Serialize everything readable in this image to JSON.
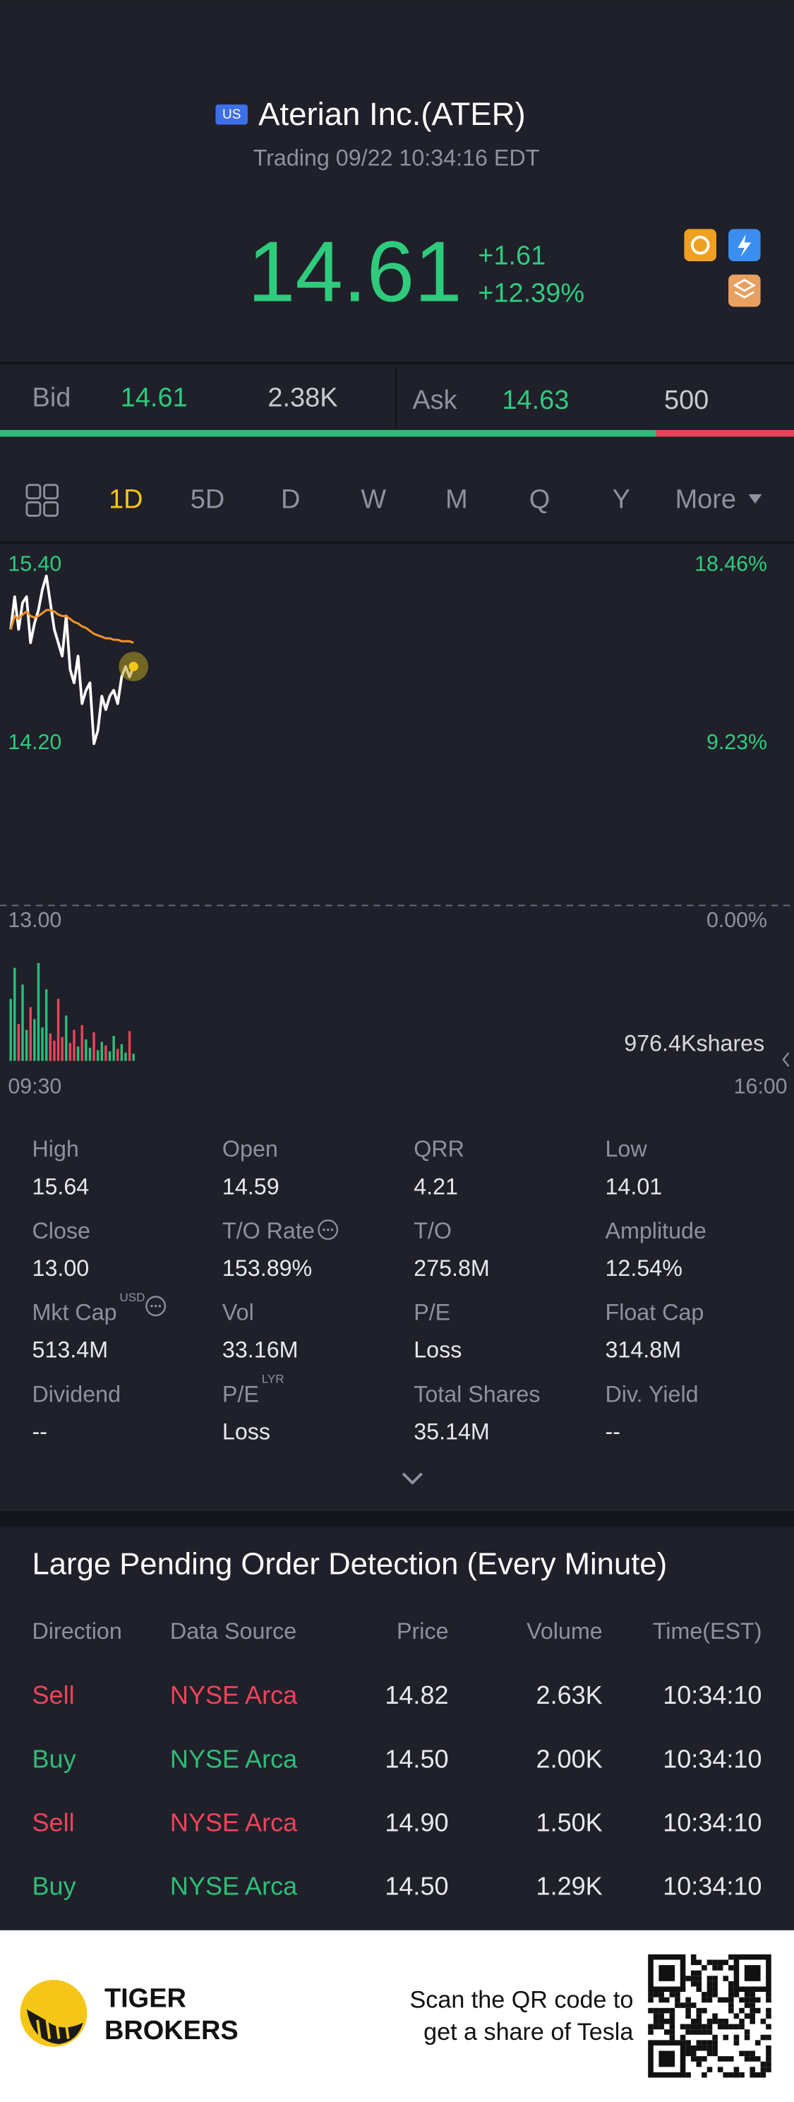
{
  "header": {
    "market": "US",
    "title": "Aterian Inc.(ATER)",
    "status": "Trading 09/22 10:34:16 EDT"
  },
  "quote": {
    "price": "14.61",
    "change": "+1.61",
    "change_percent": "+12.39%"
  },
  "bid_ask": {
    "bid_label": "Bid",
    "bid_price": "14.61",
    "bid_size": {
      "value": 2380,
      "label": "2.38K"
    },
    "ask_label": "Ask",
    "ask_price": "14.63",
    "ask_size": 500
  },
  "tabs": {
    "items": [
      "1D",
      "5D",
      "D",
      "W",
      "M",
      "Q",
      "Y",
      "More"
    ],
    "active": 0
  },
  "chart_data": [
    {
      "type": "line",
      "x": [
        "09:30",
        "09:32",
        "09:34",
        "09:36",
        "09:38",
        "09:40",
        "09:42",
        "09:44",
        "09:46",
        "09:48",
        "09:50",
        "09:52",
        "09:54",
        "09:56",
        "09:58",
        "10:00",
        "10:02",
        "10:04",
        "10:06",
        "10:08",
        "10:10",
        "10:12",
        "10:14",
        "10:16",
        "10:18",
        "10:20",
        "10:22",
        "10:24",
        "10:26",
        "10:28",
        "10:30",
        "10:32"
      ],
      "series": [
        {
          "color": "#ffffff",
          "values": [
            14.86,
            15.08,
            14.86,
            15.04,
            15.08,
            14.77,
            14.9,
            14.99,
            15.13,
            15.22,
            15.04,
            14.86,
            14.77,
            14.68,
            14.95,
            14.59,
            14.5,
            14.68,
            14.36,
            14.45,
            14.5,
            14.09,
            14.18,
            14.41,
            14.32,
            14.41,
            14.45,
            14.36,
            14.54,
            14.61,
            14.54,
            14.61
          ]
        },
        {
          "color": "#f0932b",
          "values": [
            14.86,
            14.95,
            14.93,
            14.96,
            14.98,
            14.95,
            14.94,
            14.95,
            14.97,
            14.99,
            14.99,
            14.98,
            14.96,
            14.95,
            14.95,
            14.93,
            14.91,
            14.9,
            14.88,
            14.87,
            14.85,
            14.83,
            14.82,
            14.81,
            14.8,
            14.8,
            14.79,
            14.79,
            14.78,
            14.78,
            14.78,
            14.77
          ]
        }
      ],
      "xlim": [
        "09:30",
        "16:00"
      ],
      "xticks": [
        "09:30",
        "16:00"
      ],
      "ylim": [
        13,
        15.4
      ],
      "yticks": [
        {
          "value": 13,
          "label": "13.00"
        },
        {
          "value": 14.2,
          "label": "14.20"
        },
        {
          "value": 15.4,
          "label": "15.40"
        }
      ],
      "y2lim": [
        0,
        18.46
      ],
      "y2ticks": [
        {
          "value": 0,
          "label": "0.00%"
        },
        {
          "value": 9.23,
          "label": "9.23%"
        },
        {
          "value": 18.46,
          "label": "18.46%"
        }
      ]
    },
    {
      "type": "bar",
      "x": [
        "09:30",
        "09:32",
        "09:34",
        "09:36",
        "09:38",
        "09:40",
        "09:42",
        "09:44",
        "09:46",
        "09:48",
        "09:50",
        "09:52",
        "09:54",
        "09:56",
        "09:58",
        "10:00",
        "10:02",
        "10:04",
        "10:06",
        "10:08",
        "10:10",
        "10:12",
        "10:14",
        "10:16",
        "10:18",
        "10:20",
        "10:22",
        "10:24",
        "10:26",
        "10:28",
        "10:30",
        "10:32"
      ],
      "values": [
        520000,
        780000,
        310000,
        640000,
        260000,
        450000,
        350000,
        820000,
        280000,
        600000,
        230000,
        170000,
        520000,
        200000,
        380000,
        150000,
        260000,
        120000,
        300000,
        180000,
        110000,
        240000,
        90000,
        160000,
        130000,
        80000,
        210000,
        100000,
        140000,
        70000,
        250000,
        60000
      ],
      "up_color": "#2fbd78",
      "down_color": "#e8455a",
      "ylim": [
        0,
        976400
      ],
      "yticks": [
        {
          "value": 976400,
          "label": "976.4Kshares"
        }
      ]
    }
  ],
  "stats": {
    "items": [
      {
        "label": "High",
        "value": "15.64"
      },
      {
        "label": "Open",
        "value": "14.59"
      },
      {
        "label": "QRR",
        "value": "4.21"
      },
      {
        "label": "Low",
        "value": "14.01"
      },
      {
        "label": "Close",
        "value": "13.00"
      },
      {
        "label": "T/O Rate",
        "value": "153.89%",
        "info": true
      },
      {
        "label": "T/O",
        "value": "275.8M"
      },
      {
        "label": "Amplitude",
        "value": "12.54%"
      },
      {
        "label": "Mkt Cap",
        "sup": "USD",
        "info": true,
        "value": "513.4M"
      },
      {
        "label": "Vol",
        "value": "33.16M"
      },
      {
        "label": "P/E",
        "value": "Loss"
      },
      {
        "label": "Float Cap",
        "value": "314.8M"
      },
      {
        "label": "Dividend",
        "value": "--"
      },
      {
        "label": "P/E",
        "sup": "LYR",
        "value": "Loss"
      },
      {
        "label": "Total Shares",
        "value": "35.14M"
      },
      {
        "label": "Div. Yield",
        "value": "--"
      }
    ]
  },
  "orders": {
    "title": "Large Pending Order Detection (Every Minute)",
    "columns": [
      "Direction",
      "Data Source",
      "Price",
      "Volume",
      "Time(EST)"
    ],
    "rows": [
      [
        "Sell",
        "NYSE Arca",
        "14.82",
        "2.63K",
        "10:34:10"
      ],
      [
        "Buy",
        "NYSE Arca",
        "14.50",
        "2.00K",
        "10:34:10"
      ],
      [
        "Sell",
        "NYSE Arca",
        "14.90",
        "1.50K",
        "10:34:10"
      ],
      [
        "Buy",
        "NYSE Arca",
        "14.50",
        "1.29K",
        "10:34:10"
      ]
    ],
    "row_colors": [
      "#f0435a",
      "#2fbd78",
      "#f0435a",
      "#2fbd78"
    ]
  },
  "footer": {
    "brand": [
      "TIGER",
      "BROKERS"
    ],
    "message": [
      "Scan the QR code to",
      "get a share of Tesla"
    ]
  }
}
